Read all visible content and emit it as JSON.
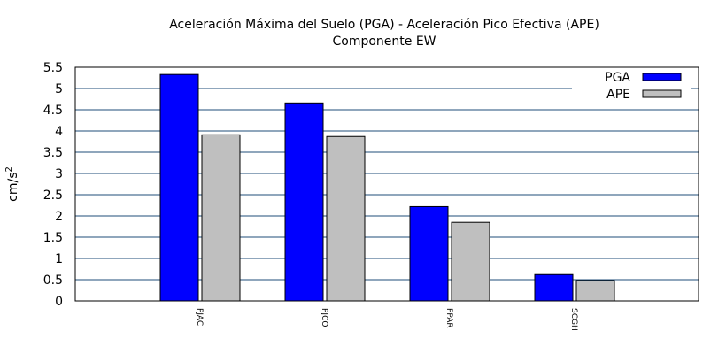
{
  "chart_data": {
    "type": "bar",
    "title": "Aceleración Máxima del Suelo (PGA) -  Aceleración Pico Efectiva (APE)",
    "subtitle": "Componente EW",
    "ylabel": "cm/s",
    "ylabel_superscript": "2",
    "xlabel": "",
    "ylim": [
      0,
      5.5
    ],
    "yticks": [
      "0",
      "0.5",
      "1",
      "1.5",
      "2",
      "2.5",
      "3",
      "3.5",
      "4",
      "4.5",
      "5",
      "5.5"
    ],
    "categories": [
      "PJAC",
      "PJCO",
      "PPAR",
      "SCGH"
    ],
    "series": [
      {
        "name": "PGA",
        "color": "#0000ff",
        "values": [
          5.33,
          4.66,
          2.22,
          0.62
        ]
      },
      {
        "name": "APE",
        "color": "#bfbfbf",
        "values": [
          3.91,
          3.87,
          1.85,
          0.48
        ]
      }
    ],
    "grid": true,
    "grid_color": "#1f4e79",
    "legend_position": "top-right"
  }
}
